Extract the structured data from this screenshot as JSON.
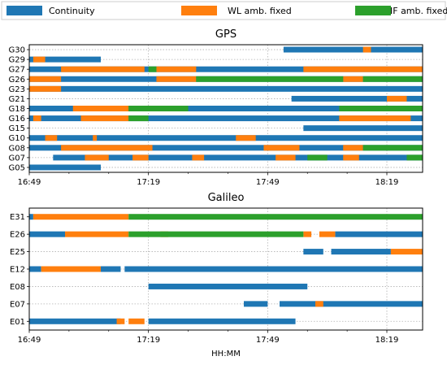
{
  "legend": [
    {
      "label": "Continuity",
      "color": "#1f77b4"
    },
    {
      "label": "WL amb. fixed",
      "color": "#ff7f0e"
    },
    {
      "label": "IF amb. fixed",
      "color": "#2ca02c"
    }
  ],
  "chart_data": [
    {
      "type": "timeline",
      "title": "GPS",
      "xlabel": "",
      "xlim": [
        "16:49",
        "18:28"
      ],
      "xticks": [
        "16:49",
        "17:19",
        "17:49",
        "18:19"
      ],
      "grid": true,
      "categories": [
        "G30",
        "G29",
        "G27",
        "G26",
        "G23",
        "G21",
        "G18",
        "G16",
        "G15",
        "G10",
        "G08",
        "G07",
        "G05"
      ],
      "series": [
        {
          "name": "Continuity",
          "color": "#1f77b4",
          "segments": {
            "G30": [
              [
                "17:53",
                "18:28"
              ]
            ],
            "G29": [
              [
                "16:49",
                "17:07"
              ]
            ],
            "G27": [
              [
                "16:49",
                "18:28"
              ]
            ],
            "G26": [
              [
                "16:49",
                "18:28"
              ]
            ],
            "G23": [
              [
                "16:49",
                "18:28"
              ]
            ],
            "G21": [
              [
                "17:55",
                "18:28"
              ]
            ],
            "G18": [
              [
                "16:49",
                "18:28"
              ]
            ],
            "G16": [
              [
                "16:49",
                "18:28"
              ]
            ],
            "G15": [
              [
                "17:58",
                "18:28"
              ]
            ],
            "G10": [
              [
                "16:49",
                "18:28"
              ]
            ],
            "G08": [
              [
                "16:49",
                "18:28"
              ]
            ],
            "G07": [
              [
                "16:55",
                "18:28"
              ]
            ],
            "G05": [
              [
                "16:49",
                "17:07"
              ]
            ]
          }
        },
        {
          "name": "WL amb. fixed",
          "color": "#ff7f0e",
          "segments": {
            "G30": [
              [
                "18:13",
                "18:15"
              ]
            ],
            "G29": [
              [
                "16:50",
                "16:53"
              ]
            ],
            "G27": [
              [
                "16:57",
                "17:18"
              ],
              [
                "17:21",
                "17:31"
              ],
              [
                "17:58",
                "18:28"
              ]
            ],
            "G26": [
              [
                "16:49",
                "16:57"
              ],
              [
                "17:21",
                "17:31"
              ],
              [
                "18:08",
                "18:13"
              ]
            ],
            "G23": [
              [
                "16:49",
                "16:57"
              ]
            ],
            "G21": [
              [
                "18:19",
                "18:24"
              ]
            ],
            "G18": [
              [
                "17:00",
                "17:14"
              ]
            ],
            "G16": [
              [
                "16:50",
                "16:52"
              ],
              [
                "17:02",
                "17:14"
              ],
              [
                "18:07",
                "18:25"
              ]
            ],
            "G15": [],
            "G10": [
              [
                "16:53",
                "16:56"
              ],
              [
                "17:05",
                "17:06"
              ],
              [
                "17:41",
                "17:46"
              ]
            ],
            "G08": [
              [
                "16:57",
                "17:20"
              ],
              [
                "17:48",
                "17:57"
              ],
              [
                "18:08",
                "18:13"
              ]
            ],
            "G07": [
              [
                "17:03",
                "17:09"
              ],
              [
                "17:15",
                "17:19"
              ],
              [
                "17:30",
                "17:33"
              ],
              [
                "17:51",
                "17:56"
              ],
              [
                "18:08",
                "18:12"
              ]
            ],
            "G05": []
          }
        },
        {
          "name": "IF amb. fixed",
          "color": "#2ca02c",
          "segments": {
            "G30": [],
            "G29": [],
            "G27": [
              [
                "17:19",
                "17:21"
              ]
            ],
            "G26": [
              [
                "17:31",
                "18:08"
              ],
              [
                "18:13",
                "18:28"
              ]
            ],
            "G23": [],
            "G21": [],
            "G18": [
              [
                "17:14",
                "17:29"
              ],
              [
                "18:07",
                "18:28"
              ]
            ],
            "G16": [
              [
                "17:14",
                "17:19"
              ]
            ],
            "G15": [],
            "G10": [],
            "G08": [
              [
                "18:13",
                "18:28"
              ]
            ],
            "G07": [
              [
                "17:59",
                "18:04"
              ],
              [
                "18:24",
                "18:28"
              ]
            ],
            "G05": []
          }
        }
      ]
    },
    {
      "type": "timeline",
      "title": "Galileo",
      "xlabel": "HH:MM",
      "xlim": [
        "16:49",
        "18:28"
      ],
      "xticks": [
        "16:49",
        "17:19",
        "17:49",
        "18:19"
      ],
      "grid": true,
      "categories": [
        "E31",
        "E26",
        "E25",
        "E12",
        "E08",
        "E07",
        "E01"
      ],
      "series": [
        {
          "name": "Continuity",
          "color": "#1f77b4",
          "segments": {
            "E31": [
              [
                "16:49",
                "16:50"
              ]
            ],
            "E26": [
              [
                "16:49",
                "16:58"
              ],
              [
                "18:06",
                "18:28"
              ]
            ],
            "E25": [
              [
                "17:58",
                "18:03"
              ],
              [
                "18:05",
                "18:20"
              ]
            ],
            "E12": [
              [
                "16:49",
                "16:52"
              ],
              [
                "17:07",
                "17:12"
              ],
              [
                "17:13",
                "18:28"
              ]
            ],
            "E08": [
              [
                "17:19",
                "17:59"
              ]
            ],
            "E07": [
              [
                "17:43",
                "17:49"
              ],
              [
                "17:52",
                "18:28"
              ]
            ],
            "E01": [
              [
                "16:49",
                "17:12"
              ],
              [
                "17:19",
                "17:56"
              ]
            ]
          }
        },
        {
          "name": "WL amb. fixed",
          "color": "#ff7f0e",
          "segments": {
            "E31": [
              [
                "16:50",
                "17:14"
              ]
            ],
            "E26": [
              [
                "16:58",
                "17:14"
              ],
              [
                "17:22",
                "17:24"
              ],
              [
                "17:58",
                "18:00"
              ],
              [
                "18:02",
                "18:06"
              ]
            ],
            "E25": [
              [
                "18:20",
                "18:28"
              ]
            ],
            "E12": [
              [
                "16:52",
                "17:07"
              ]
            ],
            "E08": [],
            "E07": [
              [
                "18:01",
                "18:03"
              ]
            ],
            "E01": [
              [
                "17:11",
                "17:13"
              ],
              [
                "17:14",
                "17:18"
              ]
            ]
          }
        },
        {
          "name": "IF amb. fixed",
          "color": "#2ca02c",
          "segments": {
            "E31": [
              [
                "17:14",
                "18:28"
              ]
            ],
            "E26": [
              [
                "17:14",
                "17:58"
              ]
            ],
            "E25": [],
            "E12": [],
            "E08": [],
            "E07": [],
            "E01": []
          }
        }
      ]
    }
  ]
}
